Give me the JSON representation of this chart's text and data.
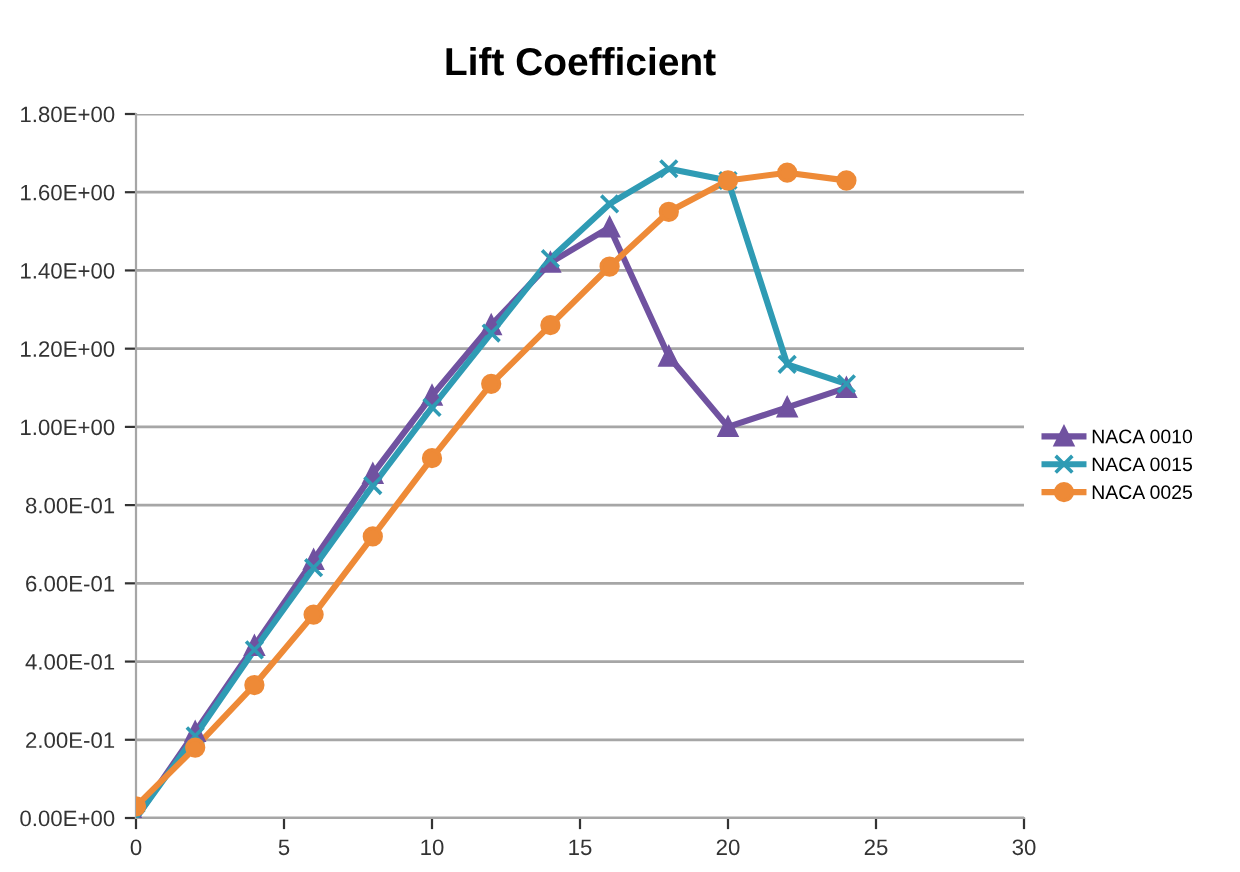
{
  "chart_data": {
    "type": "line",
    "title": "Lift Coefficient",
    "x": [
      0,
      2,
      4,
      6,
      8,
      10,
      12,
      14,
      16,
      18,
      20,
      22,
      24
    ],
    "series": [
      {
        "name": "NACA 0010",
        "color": "#7052a0",
        "marker": "triangle",
        "values": [
          0.0,
          0.22,
          0.44,
          0.66,
          0.88,
          1.08,
          1.26,
          1.42,
          1.51,
          1.18,
          1.0,
          1.05,
          1.1
        ]
      },
      {
        "name": "NACA 0015",
        "color": "#2f9bb4",
        "marker": "cross",
        "values": [
          0.0,
          0.21,
          0.43,
          0.64,
          0.85,
          1.05,
          1.24,
          1.43,
          1.57,
          1.66,
          1.63,
          1.16,
          1.11
        ]
      },
      {
        "name": "NACA 0025",
        "color": "#ee8a37",
        "marker": "circle",
        "values": [
          0.03,
          0.18,
          0.34,
          0.52,
          0.72,
          0.92,
          1.11,
          1.26,
          1.41,
          1.55,
          1.63,
          1.65,
          1.63
        ]
      }
    ],
    "xlim": [
      0,
      30
    ],
    "xticks": [
      0,
      5,
      10,
      15,
      20,
      25,
      30
    ],
    "ylim": [
      0,
      1.8
    ],
    "yticks": [
      {
        "value": 0,
        "label": "0.00E+00"
      },
      {
        "value": 0.2,
        "label": "2.00E-01"
      },
      {
        "value": 0.4,
        "label": "4.00E-01"
      },
      {
        "value": 0.6,
        "label": "6.00E-01"
      },
      {
        "value": 0.8,
        "label": "8.00E-01"
      },
      {
        "value": 1.0,
        "label": "1.00E+00"
      },
      {
        "value": 1.2,
        "label": "1.20E+00"
      },
      {
        "value": 1.4,
        "label": "1.40E+00"
      },
      {
        "value": 1.6,
        "label": "1.60E+00"
      },
      {
        "value": 1.8,
        "label": "1.80E+00"
      }
    ],
    "grid": "y",
    "legend": "right",
    "line_style": "solid"
  }
}
